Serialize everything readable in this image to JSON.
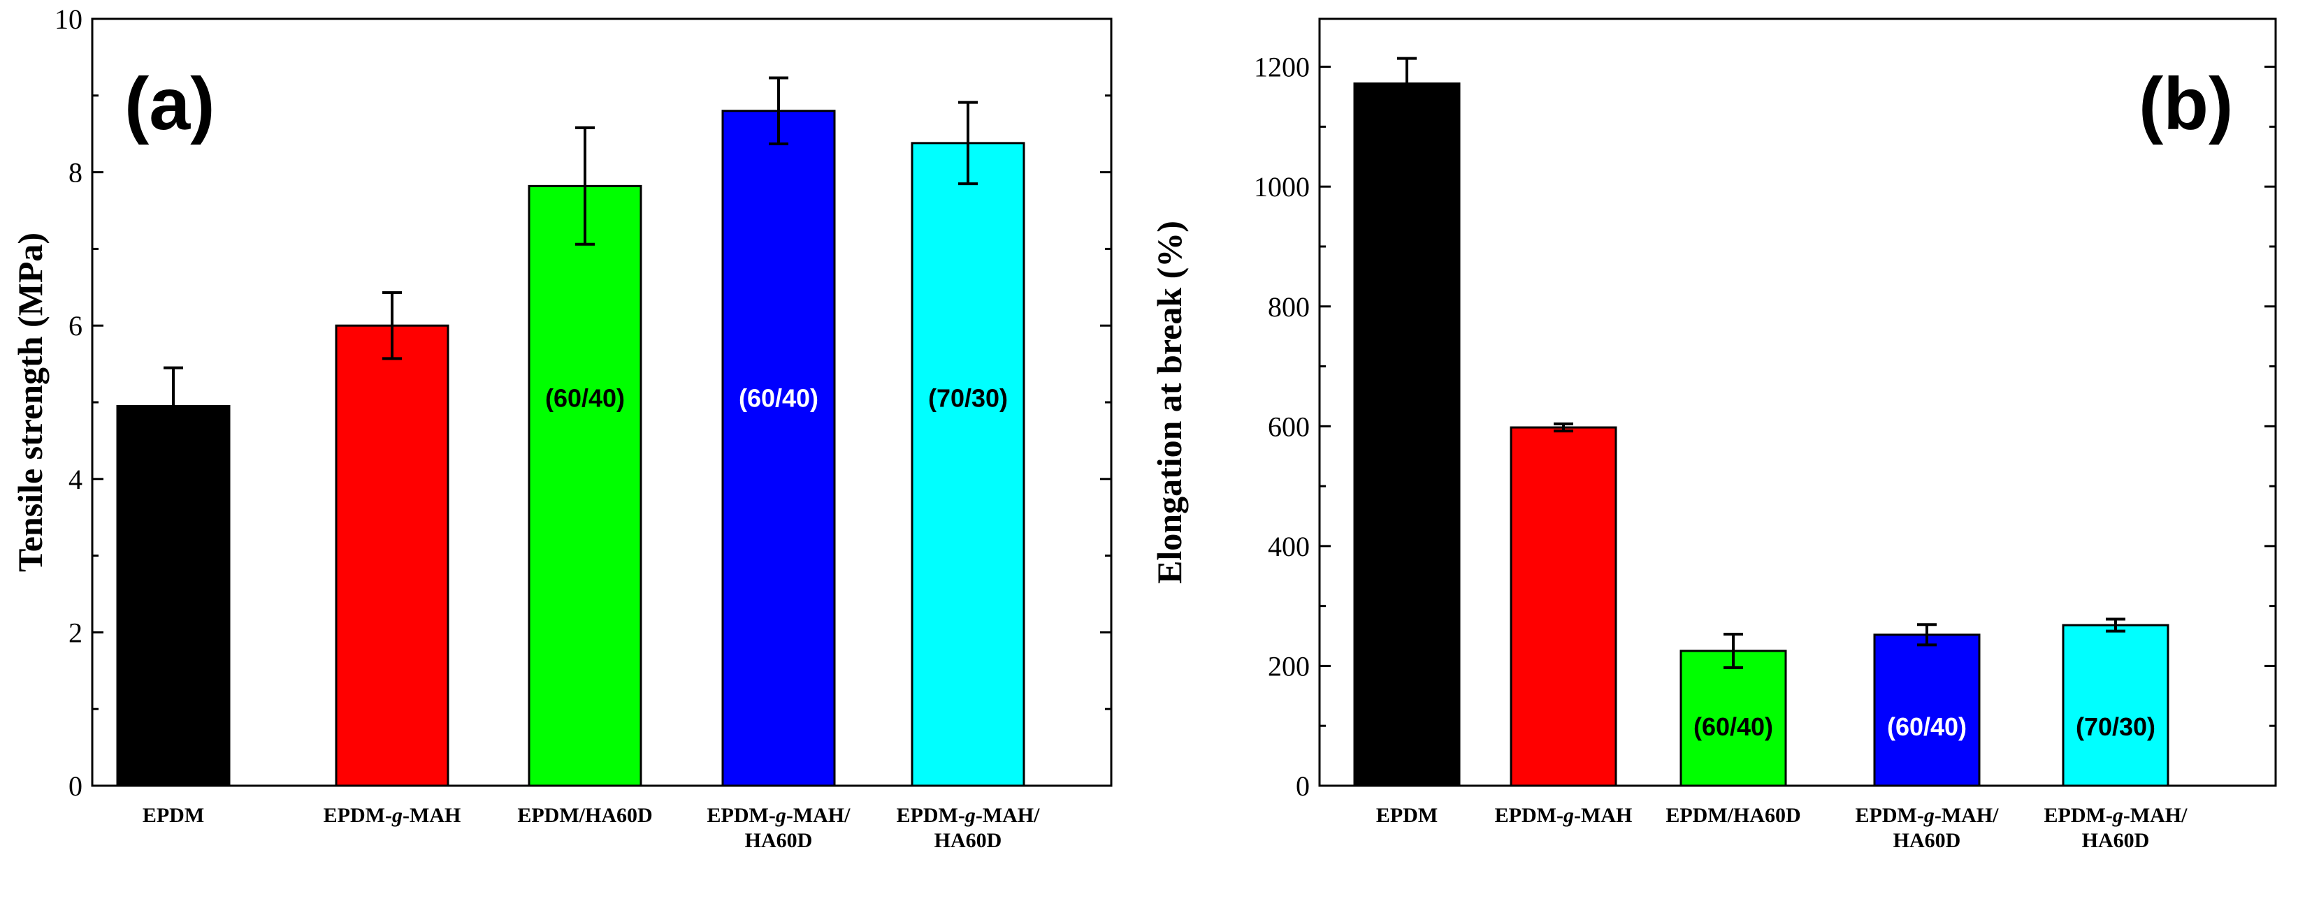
{
  "chart_data": [
    {
      "type": "bar",
      "panel_label": "(a)",
      "title": "",
      "ylabel": "Tensile strength (MPa)",
      "xlabel": "",
      "ylim": [
        0,
        10
      ],
      "yticks": [
        "0",
        "2",
        "4",
        "6",
        "8",
        "10"
      ],
      "categories": [
        [
          "EPDM"
        ],
        [
          "EPDM-g-MAH"
        ],
        [
          "EPDM/HA60D"
        ],
        [
          "EPDM-g-MAH/",
          "HA60D"
        ],
        [
          "EPDM-g-MAH/",
          "HA60D"
        ]
      ],
      "values": [
        4.95,
        6.0,
        7.82,
        8.8,
        8.38
      ],
      "errors": [
        0.5,
        0.43,
        0.76,
        0.43,
        0.53
      ],
      "bar_colors": [
        "#000000",
        "#ff0000",
        "#00ff00",
        "#0000ff",
        "#00ffff"
      ],
      "bar_labels": [
        "",
        "",
        "(60/40)",
        "(60/40)",
        "(70/30)"
      ],
      "bar_label_colors": [
        "#000000",
        "#000000",
        "#000000",
        "#ffffff",
        "#000000"
      ],
      "bar_label_values": [
        null,
        null,
        5.05,
        5.05,
        5.05
      ]
    },
    {
      "type": "bar",
      "panel_label": "(b)",
      "title": "",
      "ylabel": "Elongation at break (%)",
      "xlabel": "",
      "ylim": [
        0,
        1280
      ],
      "yticks": [
        "0",
        "200",
        "400",
        "600",
        "800",
        "1000",
        "1200"
      ],
      "categories": [
        [
          "EPDM"
        ],
        [
          "EPDM-g-MAH"
        ],
        [
          "EPDM/HA60D"
        ],
        [
          "EPDM-g-MAH/",
          "HA60D"
        ],
        [
          "EPDM-g-MAH/",
          "HA60D"
        ]
      ],
      "values": [
        1172,
        598,
        225,
        252,
        268
      ],
      "errors": [
        42,
        6,
        28,
        17,
        10
      ],
      "bar_colors": [
        "#000000",
        "#ff0000",
        "#00ff00",
        "#0000ff",
        "#00ffff"
      ],
      "bar_labels": [
        "",
        "",
        "(60/40)",
        "(60/40)",
        "(70/30)"
      ],
      "bar_label_colors": [
        "#000000",
        "#000000",
        "#000000",
        "#ffffff",
        "#000000"
      ],
      "bar_label_values": [
        null,
        null,
        98,
        98,
        98
      ]
    }
  ]
}
